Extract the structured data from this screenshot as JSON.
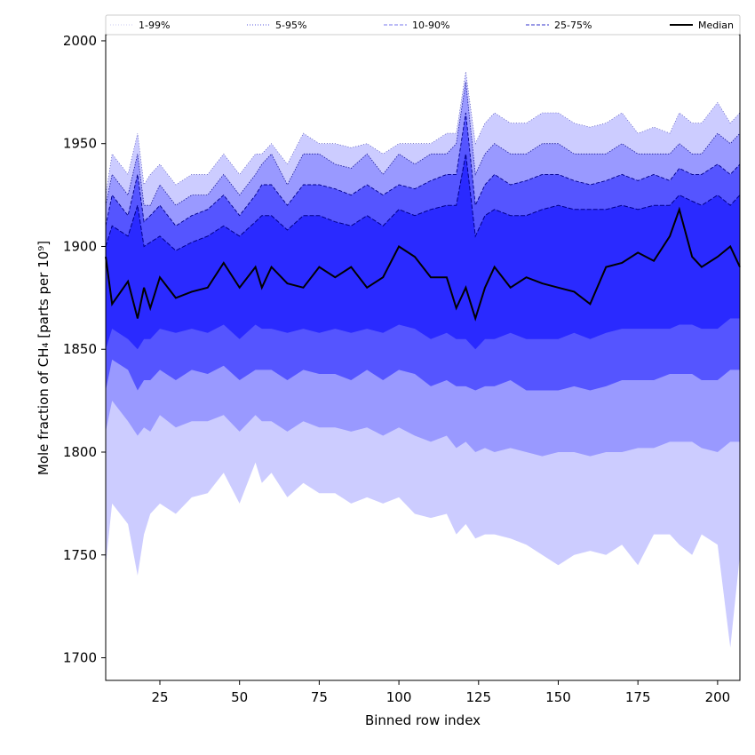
{
  "chart_data": {
    "type": "area",
    "xlabel": "Binned row index",
    "ylabel": "Mole fraction of CH₄ [parts per 10⁹]",
    "xlim": [
      8,
      207
    ],
    "ylim": [
      1689,
      2003
    ],
    "x_ticks": [
      25,
      50,
      75,
      100,
      125,
      150,
      175,
      200
    ],
    "y_ticks": [
      1700,
      1750,
      1800,
      1850,
      1900,
      1950,
      2000
    ],
    "grid": false,
    "legend_position": "top",
    "legend": [
      {
        "label": "1-99%",
        "style": "dotted",
        "color": "#c8c8f0"
      },
      {
        "label": "5-95%",
        "style": "dotted",
        "color": "#5555dd"
      },
      {
        "label": "10-90%",
        "style": "dashed",
        "color": "#7777ee"
      },
      {
        "label": "25-75%",
        "style": "dashed",
        "color": "#3333cc"
      },
      {
        "label": "Median",
        "style": "solid",
        "color": "#000000"
      }
    ],
    "colors": {
      "band_1_99": "#ccccff",
      "band_5_95": "#9999ff",
      "band_10_90": "#5555ff",
      "band_25_75": "#2a2aff",
      "median": "#000000",
      "edge_dark": "#00008b"
    },
    "x": [
      8,
      10,
      15,
      18,
      20,
      22,
      25,
      30,
      35,
      40,
      45,
      50,
      55,
      57,
      60,
      65,
      70,
      75,
      80,
      85,
      90,
      95,
      100,
      105,
      110,
      115,
      118,
      121,
      124,
      127,
      130,
      135,
      140,
      145,
      150,
      155,
      160,
      165,
      170,
      175,
      180,
      185,
      188,
      192,
      195,
      200,
      204,
      207
    ],
    "series": [
      {
        "name": "1-99% upper",
        "values": [
          1925,
          1945,
          1935,
          1955,
          1930,
          1935,
          1940,
          1930,
          1935,
          1935,
          1945,
          1935,
          1945,
          1945,
          1950,
          1940,
          1955,
          1950,
          1950,
          1948,
          1950,
          1945,
          1950,
          1950,
          1950,
          1955,
          1955,
          1985,
          1950,
          1960,
          1965,
          1960,
          1960,
          1965,
          1965,
          1960,
          1958,
          1960,
          1965,
          1955,
          1958,
          1955,
          1965,
          1960,
          1960,
          1970,
          1960,
          1965
        ]
      },
      {
        "name": "5-95% upper",
        "values": [
          1920,
          1935,
          1925,
          1945,
          1920,
          1920,
          1930,
          1920,
          1925,
          1925,
          1935,
          1925,
          1935,
          1940,
          1945,
          1930,
          1945,
          1945,
          1940,
          1938,
          1945,
          1935,
          1945,
          1940,
          1945,
          1945,
          1950,
          1980,
          1935,
          1945,
          1950,
          1945,
          1945,
          1950,
          1950,
          1945,
          1945,
          1945,
          1950,
          1945,
          1945,
          1945,
          1950,
          1945,
          1945,
          1955,
          1950,
          1955
        ]
      },
      {
        "name": "10-90% upper",
        "values": [
          1910,
          1925,
          1915,
          1935,
          1912,
          1915,
          1920,
          1910,
          1915,
          1918,
          1925,
          1915,
          1925,
          1930,
          1930,
          1920,
          1930,
          1930,
          1928,
          1925,
          1930,
          1925,
          1930,
          1928,
          1932,
          1935,
          1935,
          1965,
          1920,
          1930,
          1935,
          1930,
          1932,
          1935,
          1935,
          1932,
          1930,
          1932,
          1935,
          1932,
          1935,
          1932,
          1938,
          1935,
          1935,
          1940,
          1935,
          1940
        ]
      },
      {
        "name": "25-75% upper",
        "values": [
          1900,
          1910,
          1905,
          1920,
          1900,
          1902,
          1905,
          1898,
          1902,
          1905,
          1910,
          1905,
          1912,
          1915,
          1915,
          1908,
          1915,
          1915,
          1912,
          1910,
          1915,
          1910,
          1918,
          1915,
          1918,
          1920,
          1920,
          1945,
          1905,
          1915,
          1918,
          1915,
          1915,
          1918,
          1920,
          1918,
          1918,
          1918,
          1920,
          1918,
          1920,
          1920,
          1925,
          1922,
          1920,
          1925,
          1920,
          1925
        ]
      },
      {
        "name": "Median",
        "values": [
          1895,
          1872,
          1883,
          1865,
          1880,
          1870,
          1885,
          1875,
          1878,
          1880,
          1892,
          1880,
          1890,
          1880,
          1890,
          1882,
          1880,
          1890,
          1885,
          1890,
          1880,
          1885,
          1900,
          1895,
          1885,
          1885,
          1870,
          1880,
          1865,
          1880,
          1890,
          1880,
          1885,
          1882,
          1880,
          1878,
          1872,
          1890,
          1892,
          1897,
          1893,
          1905,
          1918,
          1895,
          1890,
          1895,
          1900,
          1890
        ]
      },
      {
        "name": "25-75% lower",
        "values": [
          1850,
          1860,
          1855,
          1850,
          1855,
          1855,
          1860,
          1858,
          1860,
          1858,
          1862,
          1855,
          1862,
          1860,
          1860,
          1858,
          1860,
          1858,
          1860,
          1858,
          1860,
          1858,
          1862,
          1860,
          1855,
          1858,
          1855,
          1855,
          1850,
          1855,
          1855,
          1858,
          1855,
          1855,
          1855,
          1858,
          1855,
          1858,
          1860,
          1860,
          1860,
          1860,
          1862,
          1862,
          1860,
          1860,
          1865,
          1865
        ]
      },
      {
        "name": "10-90% lower",
        "values": [
          1830,
          1845,
          1840,
          1830,
          1835,
          1835,
          1840,
          1835,
          1840,
          1838,
          1842,
          1835,
          1840,
          1840,
          1840,
          1835,
          1840,
          1838,
          1838,
          1835,
          1840,
          1835,
          1840,
          1838,
          1832,
          1835,
          1832,
          1832,
          1830,
          1832,
          1832,
          1835,
          1830,
          1830,
          1830,
          1832,
          1830,
          1832,
          1835,
          1835,
          1835,
          1838,
          1838,
          1838,
          1835,
          1835,
          1840,
          1840
        ]
      },
      {
        "name": "5-95% lower",
        "values": [
          1810,
          1825,
          1815,
          1808,
          1812,
          1810,
          1818,
          1812,
          1815,
          1815,
          1818,
          1810,
          1818,
          1815,
          1815,
          1810,
          1815,
          1812,
          1812,
          1810,
          1812,
          1808,
          1812,
          1808,
          1805,
          1808,
          1802,
          1805,
          1800,
          1802,
          1800,
          1802,
          1800,
          1798,
          1800,
          1800,
          1798,
          1800,
          1800,
          1802,
          1802,
          1805,
          1805,
          1805,
          1802,
          1800,
          1805,
          1805
        ]
      },
      {
        "name": "1-99% lower",
        "values": [
          1745,
          1775,
          1765,
          1740,
          1760,
          1770,
          1775,
          1770,
          1778,
          1780,
          1790,
          1775,
          1795,
          1785,
          1790,
          1778,
          1785,
          1780,
          1780,
          1775,
          1778,
          1775,
          1778,
          1770,
          1768,
          1770,
          1760,
          1765,
          1758,
          1760,
          1760,
          1758,
          1755,
          1750,
          1745,
          1750,
          1752,
          1750,
          1755,
          1745,
          1760,
          1760,
          1755,
          1750,
          1760,
          1755,
          1705,
          1750
        ]
      }
    ]
  }
}
